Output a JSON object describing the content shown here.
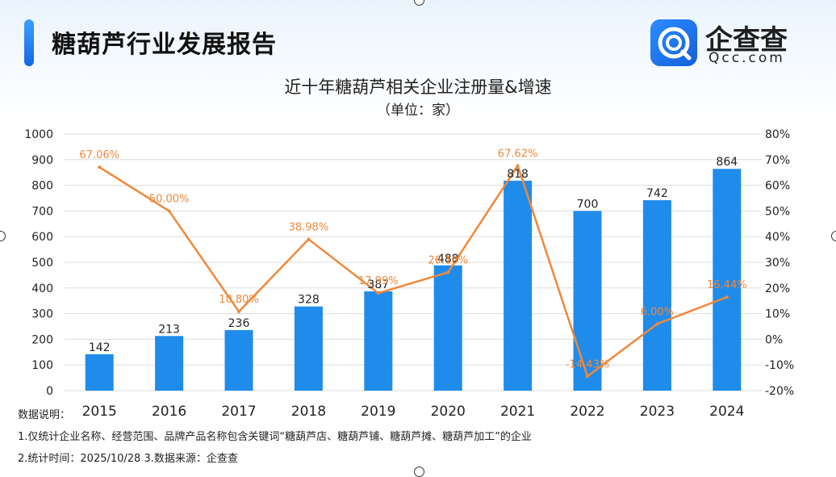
{
  "header": {
    "title": "糖葫芦行业发展报告"
  },
  "brand": {
    "name": "企查查",
    "domain": "Qcc.com",
    "accent": "#1a7ff0"
  },
  "chart_data": {
    "type": "bar",
    "title": "近十年糖葫芦相关企业注册量&增速",
    "subtitle": "（单位：家）",
    "categories": [
      "2015",
      "2016",
      "2017",
      "2018",
      "2019",
      "2020",
      "2021",
      "2022",
      "2023",
      "2024"
    ],
    "series": [
      {
        "type": "bar",
        "axis": "left",
        "values": [
          142,
          213,
          236,
          328,
          387,
          488,
          818,
          700,
          742,
          864
        ],
        "labels": [
          "142",
          "213",
          "236",
          "328",
          "387",
          "488",
          "818",
          "700",
          "742",
          "864"
        ],
        "color": "#1f8ceb"
      },
      {
        "type": "line",
        "axis": "right",
        "values": [
          67.06,
          50.0,
          10.8,
          38.98,
          17.99,
          26.1,
          67.62,
          -14.43,
          6.0,
          16.44
        ],
        "labels": [
          "67.06%",
          "50.00%",
          "10.80%",
          "38.98%",
          "17.99%",
          "26.10%",
          "67.62%",
          "-14.43%",
          "6.00%",
          "16.44%"
        ],
        "color": "#f0883a"
      }
    ],
    "ylim": [
      0,
      1000
    ],
    "yticks": [
      "0",
      "100",
      "200",
      "300",
      "400",
      "500",
      "600",
      "700",
      "800",
      "900",
      "1000"
    ],
    "y2lim": [
      -20,
      80
    ],
    "y2ticks": [
      "-20%",
      "-10%",
      "0%",
      "10%",
      "20%",
      "30%",
      "40%",
      "50%",
      "60%",
      "70%",
      "80%"
    ],
    "grid": true,
    "legend": "none"
  },
  "notes": {
    "line1": "数据说明：",
    "line2": "1.仅统计企业名称、经营范围、品牌产品名称包含关键词“糖葫芦店、糖葫芦铺、糖葫芦摊、糖葫芦加工”的企业",
    "line3": "2.统计时间：2025/10/28    3.数据来源：企查查"
  }
}
